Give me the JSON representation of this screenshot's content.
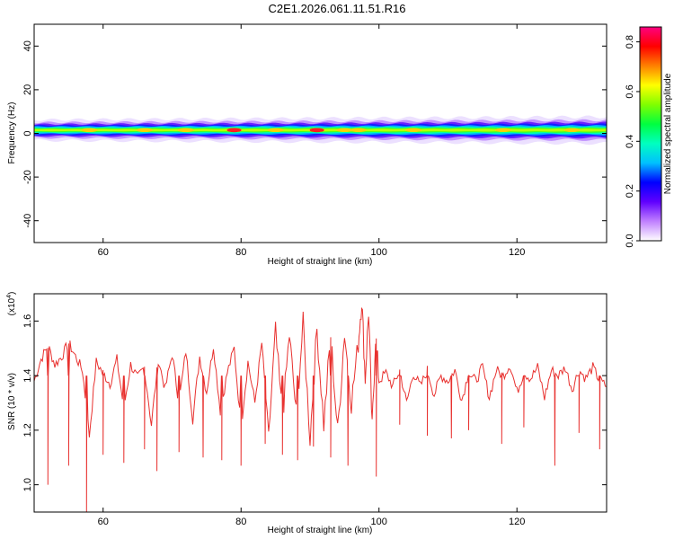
{
  "title": "C2E1.2026.061.11.51.R16",
  "chart_data": [
    {
      "type": "heatmap",
      "title": "C2E1.2026.061.11.51.R16",
      "xlabel": "Height of straight line (km)",
      "ylabel": "Frequency (Hz)",
      "xlim": [
        50,
        133
      ],
      "ylim": [
        -50,
        50
      ],
      "xticks": [
        "60",
        "80",
        "100",
        "120"
      ],
      "yticks": [
        "40",
        "20",
        "0",
        "-20",
        "-40"
      ],
      "band": {
        "center_hz": 1.5,
        "halfwidth_hz_start": 3.5,
        "halfwidth_hz_end": 4.5,
        "hotspots_km": [
          58,
          66,
          72,
          79,
          85,
          91,
          95,
          97,
          105,
          118,
          128
        ],
        "peak_km": [
          79,
          91
        ]
      },
      "colorbar": {
        "label": "Normalized spectral amplitude",
        "range": [
          0,
          0.86
        ],
        "ticks": [
          "0.0",
          "0.2",
          "0.4",
          "0.6",
          "0.8"
        ],
        "colors": [
          "#ffffff",
          "#c080ff",
          "#6000ff",
          "#0000ff",
          "#00c0ff",
          "#00ffc0",
          "#00ff40",
          "#80ff00",
          "#ffff00",
          "#ff8000",
          "#ff0000",
          "#ff0080"
        ]
      }
    },
    {
      "type": "line",
      "xlabel": "Height of straight line (km)",
      "ylabel": "SNR (10 * v/v)",
      "ylabel_multiplier": "(x10",
      "ylabel_exponent": "4",
      "xlim": [
        50,
        133
      ],
      "ylim": [
        0.9,
        1.7
      ],
      "xticks": [
        "60",
        "80",
        "100",
        "120"
      ],
      "yticks": [
        "1.6",
        "1.4",
        "1.2",
        "1.0"
      ],
      "series": [
        {
          "color": "#e8312f",
          "x": [
            50,
            51,
            52,
            53,
            54,
            55,
            56,
            57,
            58,
            59,
            60,
            61,
            62,
            63,
            64,
            65,
            66,
            67,
            68,
            69,
            70,
            71,
            72,
            73,
            74,
            75,
            76,
            77,
            78,
            79,
            80,
            81,
            82,
            83,
            84,
            85,
            86,
            87,
            88,
            89,
            90,
            91,
            92,
            93,
            94,
            95,
            96,
            97,
            97.5,
            98,
            98.5,
            99,
            99.5,
            100,
            101,
            102,
            103,
            104,
            105,
            106,
            107,
            108,
            109,
            110,
            111,
            112,
            113,
            114,
            115,
            116,
            117,
            118,
            119,
            120,
            121,
            122,
            123,
            124,
            125,
            126,
            127,
            128,
            129,
            130,
            131,
            132,
            133
          ],
          "y": [
            1.38,
            1.46,
            1.51,
            1.44,
            1.47,
            1.52,
            1.47,
            1.42,
            1.18,
            1.45,
            1.41,
            1.37,
            1.46,
            1.28,
            1.44,
            1.39,
            1.43,
            1.22,
            1.46,
            1.35,
            1.48,
            1.3,
            1.49,
            1.24,
            1.47,
            1.34,
            1.51,
            1.27,
            1.41,
            1.5,
            1.21,
            1.45,
            1.3,
            1.52,
            1.18,
            1.56,
            1.24,
            1.55,
            1.26,
            1.59,
            1.17,
            1.57,
            1.22,
            1.55,
            1.19,
            1.56,
            1.3,
            1.52,
            1.68,
            1.39,
            1.64,
            1.2,
            1.55,
            1.38,
            1.41,
            1.36,
            1.42,
            1.3,
            1.41,
            1.36,
            1.42,
            1.33,
            1.4,
            1.38,
            1.42,
            1.31,
            1.41,
            1.38,
            1.43,
            1.32,
            1.42,
            1.4,
            1.44,
            1.34,
            1.41,
            1.39,
            1.43,
            1.32,
            1.42,
            1.4,
            1.43,
            1.35,
            1.42,
            1.39,
            1.43,
            1.38,
            1.36
          ],
          "dips_x": [
            52,
            55,
            57.6,
            60,
            63,
            66,
            67.8,
            71,
            74.5,
            77.2,
            80,
            83.5,
            86,
            88.2,
            90.5,
            93,
            95.5,
            99.6,
            103,
            107,
            110.5,
            113,
            117.8,
            121,
            125.5,
            129,
            132
          ],
          "dips_y": [
            1.0,
            1.07,
            0.9,
            1.11,
            1.08,
            1.13,
            1.05,
            1.12,
            1.1,
            1.09,
            1.07,
            1.15,
            1.11,
            1.09,
            1.14,
            1.1,
            1.07,
            1.03,
            1.22,
            1.18,
            1.17,
            1.2,
            1.15,
            1.21,
            1.07,
            1.19,
            1.13
          ]
        }
      ]
    }
  ]
}
